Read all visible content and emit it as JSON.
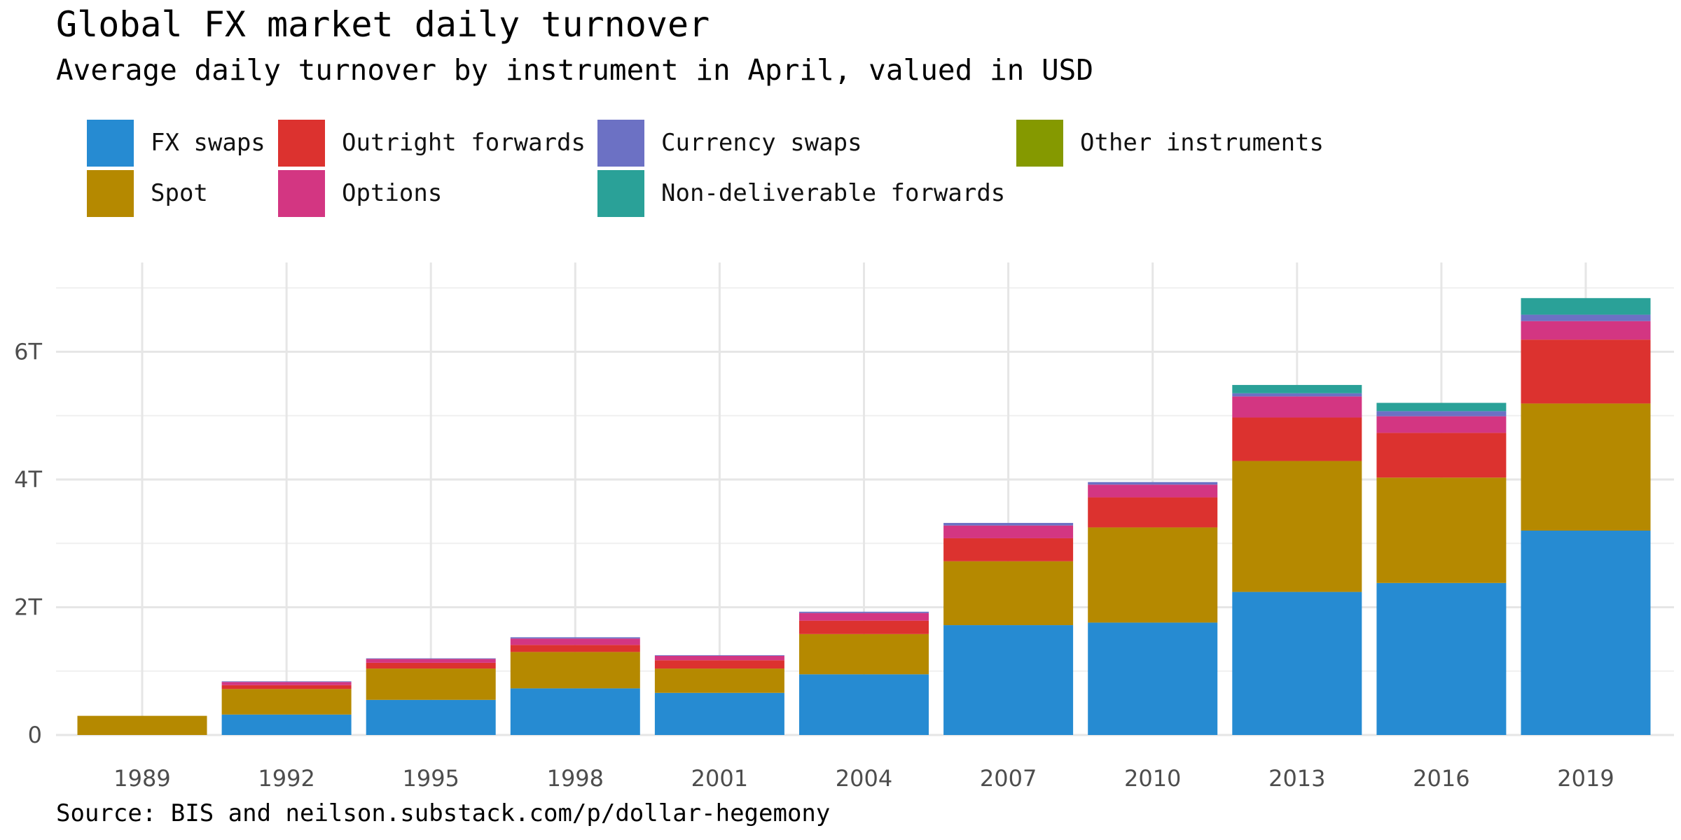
{
  "title": "Global FX market daily turnover",
  "subtitle": "Average daily turnover by instrument in April, valued in USD",
  "caption": "Source: BIS and neilson.substack.com/p/dollar-hegemony",
  "chart_data": {
    "type": "bar",
    "stacked": true,
    "title": "Global FX market daily turnover",
    "subtitle": "Average daily turnover by instrument in April, valued in USD",
    "xlabel": "",
    "ylabel": "",
    "ylim": [
      0,
      7.2
    ],
    "y_unit": "trillion USD",
    "yticks": [
      0,
      2,
      4,
      6
    ],
    "ytick_labels": [
      "0",
      "2T",
      "4T",
      "6T"
    ],
    "grid": true,
    "legend_position": "top",
    "categories": [
      "1989",
      "1992",
      "1995",
      "1998",
      "2001",
      "2004",
      "2007",
      "2010",
      "2013",
      "2016",
      "2019"
    ],
    "series": [
      {
        "name": "FX swaps",
        "color": "#268bd2",
        "values": [
          0,
          0.32,
          0.55,
          0.73,
          0.66,
          0.95,
          1.72,
          1.76,
          2.24,
          2.38,
          3.2
        ]
      },
      {
        "name": "Spot",
        "color": "#b58900",
        "values": [
          0.3,
          0.4,
          0.49,
          0.57,
          0.38,
          0.63,
          1.0,
          1.49,
          2.05,
          1.65,
          1.99
        ]
      },
      {
        "name": "Outright forwards",
        "color": "#dc322f",
        "values": [
          0,
          0.06,
          0.09,
          0.11,
          0.13,
          0.21,
          0.36,
          0.47,
          0.68,
          0.7,
          1.0
        ]
      },
      {
        "name": "Options",
        "color": "#d33682",
        "values": [
          0,
          0.05,
          0.06,
          0.1,
          0.07,
          0.12,
          0.2,
          0.2,
          0.33,
          0.26,
          0.29
        ]
      },
      {
        "name": "Currency swaps",
        "color": "#6c71c4",
        "values": [
          0,
          0.01,
          0.01,
          0.02,
          0.01,
          0.02,
          0.04,
          0.04,
          0.05,
          0.08,
          0.1
        ]
      },
      {
        "name": "Non-deliverable forwards",
        "color": "#2aa198",
        "values": [
          0,
          0,
          0,
          0,
          0,
          0,
          0,
          0,
          0.13,
          0.13,
          0.26
        ]
      },
      {
        "name": "Other instruments",
        "color": "#859900",
        "values": [
          0,
          0,
          0,
          0,
          0,
          0,
          0,
          0,
          0,
          0,
          0
        ]
      }
    ]
  }
}
